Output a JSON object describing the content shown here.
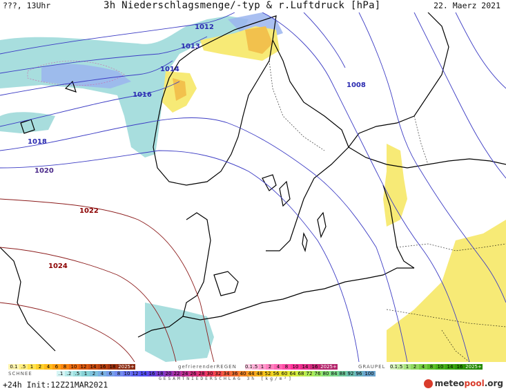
{
  "header": {
    "left": "???, 13Uhr",
    "title": "3h Niederschlagsmenge/-typ & r.Luftdruck [hPa]",
    "date": "22. Maerz 2021"
  },
  "isobars": [
    {
      "label": "1008",
      "color": "#2a2ab0"
    },
    {
      "label": "1013",
      "color": "#2a2ab0"
    },
    {
      "label": "1014",
      "color": "#2a2ab0"
    },
    {
      "label": "1016",
      "color": "#2a2ab0"
    },
    {
      "label": "1018",
      "color": "#2a2ab0"
    },
    {
      "label": "1020",
      "color": "#2a2ab0"
    },
    {
      "label": "1022",
      "color": "#8b0000"
    },
    {
      "label": "1024",
      "color": "#8b0000"
    }
  ],
  "legend": {
    "regen": {
      "title": "",
      "stops": [
        "0.1",
        "0.5",
        "1",
        "2",
        "4",
        "6",
        "8",
        "10",
        "12",
        "14",
        "16",
        "18",
        "2025+"
      ]
    },
    "gefrierender": {
      "title": "gefrierenderREGEN",
      "stops": [
        "0.1",
        "0.5",
        "1",
        "2",
        "4",
        "8",
        "10",
        "14",
        "16",
        "2025+"
      ]
    },
    "graupel": {
      "title": "GRAUPEL",
      "stops": [
        "0.1",
        "0.5",
        "1",
        "2",
        "4",
        "8",
        "10",
        "14",
        "16",
        "2025+"
      ]
    },
    "schnee": {
      "title": "SCHNEE",
      "stops": [
        "0.1",
        ".2",
        ".5",
        "1",
        "2",
        "4",
        "6",
        "8",
        "10",
        "12",
        "14",
        "16",
        "18",
        "20",
        "22",
        "24",
        "26",
        "28",
        "30",
        "32",
        "34",
        "36",
        "40",
        "44",
        "48",
        "52",
        "56",
        "60",
        "64",
        "68",
        "72",
        "76",
        "80",
        "84",
        "88",
        "92",
        "96",
        "100"
      ]
    },
    "gesamt_title": "GESAMTNIEDERSCHLAG 3h [kg/m²]"
  },
  "footer": {
    "run": "+24h Init:12Z21MAR2021",
    "brand_a": "meteo",
    "brand_b": "pool",
    "brand_c": ".org"
  },
  "colors": {
    "snow": "#8fd3d3",
    "snow_dark": "#8aa9e6",
    "rain_yellow": "#ffee66",
    "rain_orange": "#f6b73c",
    "land_line": "#000000"
  }
}
